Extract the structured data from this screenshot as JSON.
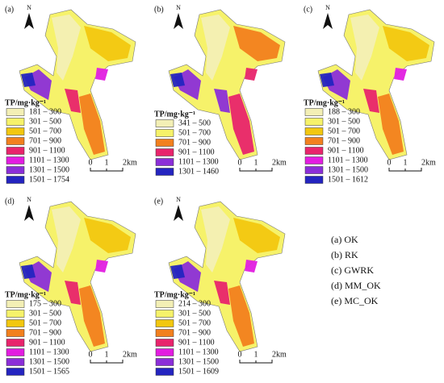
{
  "north": "N",
  "legend_title": "TP/mg·kg⁻¹",
  "scale_labels": [
    "0",
    "1",
    "2km"
  ],
  "panels": [
    {
      "label": "(a)",
      "legend": [
        {
          "range": "181 – 300",
          "color": "#f3efb5"
        },
        {
          "range": "301 – 500",
          "color": "#f6f26a"
        },
        {
          "range": "501 – 700",
          "color": "#f2c710"
        },
        {
          "range": "701 – 900",
          "color": "#f2801e"
        },
        {
          "range": "901 – 1100",
          "color": "#e8246c"
        },
        {
          "range": "1101 – 1300",
          "color": "#e21de0"
        },
        {
          "range": "1301 – 1500",
          "color": "#8b2ed8"
        },
        {
          "range": "1501 – 1754",
          "color": "#2424c0"
        }
      ]
    },
    {
      "label": "(b)",
      "legend": [
        {
          "range": "341 – 500",
          "color": "#f3efb5"
        },
        {
          "range": "501 – 700",
          "color": "#f6f26a"
        },
        {
          "range": "701 – 900",
          "color": "#f2801e"
        },
        {
          "range": "901 – 1100",
          "color": "#e8246c"
        },
        {
          "range": "1101 – 1300",
          "color": "#8b2ed8"
        },
        {
          "range": "1301 – 1460",
          "color": "#2424c0"
        }
      ]
    },
    {
      "label": "(c)",
      "legend": [
        {
          "range": "188 – 300",
          "color": "#f3efb5"
        },
        {
          "range": "301 – 500",
          "color": "#f6f26a"
        },
        {
          "range": "501 – 700",
          "color": "#f2c710"
        },
        {
          "range": "701 – 900",
          "color": "#f2801e"
        },
        {
          "range": "901 – 1100",
          "color": "#e8246c"
        },
        {
          "range": "1101 – 1300",
          "color": "#e21de0"
        },
        {
          "range": "1301 – 1500",
          "color": "#8b2ed8"
        },
        {
          "range": "1501 – 1612",
          "color": "#2424c0"
        }
      ]
    },
    {
      "label": "(d)",
      "legend": [
        {
          "range": "175 – 300",
          "color": "#f3efb5"
        },
        {
          "range": "301 – 500",
          "color": "#f6f26a"
        },
        {
          "range": "501 – 700",
          "color": "#f2c710"
        },
        {
          "range": "701 – 900",
          "color": "#f2801e"
        },
        {
          "range": "901 – 1100",
          "color": "#e8246c"
        },
        {
          "range": "1101 – 1300",
          "color": "#e21de0"
        },
        {
          "range": "1301 – 1500",
          "color": "#8b2ed8"
        },
        {
          "range": "1501 – 1565",
          "color": "#2424c0"
        }
      ]
    },
    {
      "label": "(e)",
      "legend": [
        {
          "range": "214 – 300",
          "color": "#f3efb5"
        },
        {
          "range": "301 – 500",
          "color": "#f6f26a"
        },
        {
          "range": "501 – 700",
          "color": "#f2c710"
        },
        {
          "range": "701 – 900",
          "color": "#f2801e"
        },
        {
          "range": "901 – 1100",
          "color": "#e8246c"
        },
        {
          "range": "1101 – 1300",
          "color": "#e21de0"
        },
        {
          "range": "1301 – 1500",
          "color": "#8b2ed8"
        },
        {
          "range": "1501 – 1609",
          "color": "#2424c0"
        }
      ]
    }
  ],
  "methods": [
    "(a)  OK",
    "(b)  RK",
    "(c)  GWRK",
    "(d)  MM_OK",
    "(e)  MC_OK"
  ]
}
